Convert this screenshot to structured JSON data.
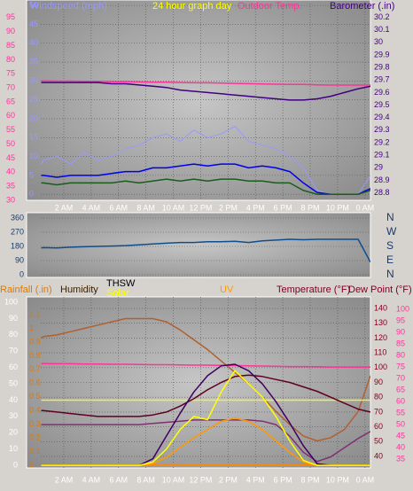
{
  "chart_data": [
    {
      "type": "line",
      "title": "24 hour graph day",
      "x": [
        0.35,
        0.5,
        1.5,
        2.5,
        3.5,
        4.5,
        5.5,
        6.5,
        7.5,
        8.5,
        9.5,
        10.5,
        11.5,
        12.5,
        13.5,
        14.5,
        15.5,
        16.5,
        17.5,
        18.5,
        19.5,
        20.5,
        21.5,
        22.5,
        23.5,
        24.4
      ],
      "xlim": [
        0.32,
        24.4
      ],
      "xticks": [
        {
          "value": 2,
          "label": "2 AM"
        },
        {
          "value": 4,
          "label": "4 AM"
        },
        {
          "value": 6,
          "label": "6 AM"
        },
        {
          "value": 8,
          "label": "8 AM"
        },
        {
          "value": 10,
          "label": "10 AM"
        },
        {
          "value": 12,
          "label": "12 PM"
        },
        {
          "value": 14,
          "label": "2 PM"
        },
        {
          "value": 16,
          "label": "4 PM"
        },
        {
          "value": 18,
          "label": "6 PM"
        },
        {
          "value": 20,
          "label": "8 PM"
        },
        {
          "value": 22,
          "label": "10 PM"
        },
        {
          "value": 24,
          "label": "0 AM"
        }
      ],
      "axes": [
        {
          "label": "Outdoor Temp.",
          "color": "#ff3399",
          "ylim": [
            30,
            100
          ],
          "yticks": [
            30,
            35,
            40,
            45,
            50,
            55,
            60,
            65,
            70,
            75,
            80,
            85,
            90,
            95
          ]
        },
        {
          "label": "Windspeed (mph)",
          "color": "#9999ff",
          "ylim": [
            -1.6,
            50.5
          ],
          "yticks": [
            0,
            5,
            10,
            15,
            20,
            25,
            30,
            35,
            40,
            45,
            50
          ],
          "grid": true
        },
        {
          "label": "Barometer (.in)",
          "color": "#400080",
          "ylim": [
            28.74,
            30.31
          ],
          "yticks": [
            28.8,
            28.9,
            29,
            29.1,
            29.2,
            29.3,
            29.4,
            29.5,
            29.6,
            29.7,
            29.8,
            29.9,
            30,
            30.1,
            30.2
          ]
        }
      ],
      "series": [
        {
          "axis": 1,
          "color": "#9999ff",
          "values": [
            8,
            9,
            10,
            8,
            11,
            9,
            10,
            12,
            13,
            15,
            16,
            14,
            17,
            15,
            16,
            18,
            14,
            13,
            12,
            10,
            7,
            1,
            0,
            0,
            0,
            5
          ]
        },
        {
          "axis": 1,
          "color": "#0000ee",
          "values": [
            5,
            5,
            4.5,
            5,
            5,
            5,
            5.5,
            6,
            6,
            7,
            7,
            7.5,
            8,
            7.5,
            8,
            8,
            7,
            7.5,
            7,
            6,
            3,
            0.5,
            0,
            0,
            0,
            1.5
          ]
        },
        {
          "axis": 1,
          "color": "#1a5c1a",
          "values": [
            3,
            3,
            2.5,
            3,
            3,
            3,
            3,
            3.5,
            3,
            3.5,
            4,
            3.5,
            4,
            3.5,
            4,
            4,
            3.5,
            3.5,
            3,
            3,
            1,
            0,
            0,
            0,
            0,
            1
          ]
        },
        {
          "axis": 0,
          "color": "#ff3399",
          "values": [
            72.5,
            72.5,
            72.4,
            72.4,
            72.3,
            72.3,
            72.2,
            72.2,
            72.1,
            72,
            72,
            71.9,
            71.8,
            71.8,
            71.7,
            71.6,
            71.5,
            71.4,
            71.3,
            71.2,
            71.2,
            71.1,
            71,
            71,
            71,
            71
          ]
        },
        {
          "axis": 2,
          "color": "#400080",
          "values": [
            29.68,
            29.68,
            29.68,
            29.68,
            29.68,
            29.68,
            29.67,
            29.67,
            29.66,
            29.65,
            29.64,
            29.62,
            29.61,
            29.6,
            29.59,
            29.58,
            29.57,
            29.56,
            29.55,
            29.54,
            29.54,
            29.55,
            29.57,
            29.6,
            29.63,
            29.65
          ]
        }
      ]
    },
    {
      "type": "line",
      "x": [
        0.35,
        0.5,
        1.5,
        2.5,
        3.5,
        4.5,
        5.5,
        6.5,
        7.5,
        8.5,
        9.5,
        10.5,
        11.5,
        12.5,
        13.5,
        14.5,
        15.5,
        16.5,
        17.5,
        18.5,
        19.5,
        20.5,
        21.5,
        22.5,
        23.5,
        24.4
      ],
      "xlim": [
        0.32,
        24.4
      ],
      "axes": [
        {
          "color": "#1a3a6a",
          "ylim": [
            0,
            360
          ],
          "yticks": [
            0,
            90,
            180,
            270,
            360
          ],
          "grid": true
        },
        {
          "color": "#1a3a6a",
          "ylim": [
            0,
            360
          ],
          "yticks": [
            {
              "value": 0,
              "label": "N"
            },
            {
              "value": 90,
              "label": "E"
            },
            {
              "value": 180,
              "label": "S"
            },
            {
              "value": 270,
              "label": "W"
            },
            {
              "value": 360,
              "label": "N"
            }
          ]
        }
      ],
      "series": [
        {
          "axis": 0,
          "color": "#104e8b",
          "values": [
            170,
            172,
            170,
            175,
            178,
            180,
            182,
            185,
            190,
            195,
            200,
            205,
            205,
            210,
            210,
            212,
            205,
            215,
            220,
            225,
            222,
            225,
            225,
            225,
            225,
            80
          ]
        }
      ]
    },
    {
      "type": "line",
      "annotations": [
        "THSW"
      ],
      "x": [
        0.35,
        0.5,
        1.5,
        2.5,
        3.5,
        4.5,
        5.5,
        6.5,
        7.5,
        8.5,
        9.5,
        10.5,
        11.5,
        12.5,
        13.5,
        14.5,
        15.5,
        16.5,
        17.5,
        18.5,
        19.5,
        20.5,
        21.5,
        22.5,
        23.5,
        24.4
      ],
      "xlim": [
        0.32,
        24.4
      ],
      "xticks": [
        {
          "value": 2,
          "label": "2 AM"
        },
        {
          "value": 4,
          "label": "4 AM"
        },
        {
          "value": 6,
          "label": "6 AM"
        },
        {
          "value": 8,
          "label": "8 AM"
        },
        {
          "value": 10,
          "label": "10 AM"
        },
        {
          "value": 12,
          "label": "12 PM"
        },
        {
          "value": 14,
          "label": "2 PM"
        },
        {
          "value": 16,
          "label": "4 PM"
        },
        {
          "value": 18,
          "label": "6 PM"
        },
        {
          "value": 20,
          "label": "8 PM"
        },
        {
          "value": 22,
          "label": "10 PM"
        },
        {
          "value": 24,
          "label": "0 AM"
        }
      ],
      "axes": [
        {
          "label": "Humidity",
          "color": "#ffffff",
          "label_color": "#3a2000",
          "ylim": [
            -1.6,
            103.3
          ],
          "yticks": [
            0,
            10,
            20,
            30,
            40,
            50,
            60,
            70,
            80,
            90,
            100
          ]
        },
        {
          "label": "Rainfall (.in)",
          "color": "#e07800",
          "ylim": [
            -0.02,
            1.23
          ],
          "yticks": [
            0,
            0.1,
            0.2,
            0.3,
            0.4,
            0.5,
            0.6,
            0.7,
            0.8,
            0.9,
            1,
            1.1
          ]
        },
        {
          "label": "Temperature (°F)",
          "color": "#800020",
          "ylim": [
            32.2,
            147.8
          ],
          "yticks": [
            40,
            50,
            60,
            70,
            80,
            90,
            100,
            110,
            120,
            130,
            140
          ],
          "grid": true
        },
        {
          "label": "Dew Point (°F)",
          "color": "#ff3399",
          "label_color": "#800020",
          "ylim": [
            31.2,
            105.4
          ],
          "yticks": [
            35,
            40,
            45,
            50,
            55,
            60,
            65,
            70,
            75,
            80,
            85,
            90,
            95,
            100
          ]
        }
      ],
      "series": [
        {
          "axis": 1,
          "color": "#ff8800",
          "values": [
            0,
            0,
            0,
            0,
            0,
            0,
            0,
            0,
            0,
            0,
            0,
            0,
            0,
            0,
            0,
            0,
            0,
            0,
            0,
            0,
            0,
            0,
            0,
            0,
            0,
            0
          ]
        },
        {
          "axis": 0,
          "color": "#b06030",
          "values": [
            78,
            79,
            80,
            82,
            84,
            86,
            88,
            90,
            90,
            90,
            88,
            83,
            77,
            71,
            64,
            57,
            50,
            42,
            33,
            25,
            18,
            15,
            17,
            22,
            33,
            55
          ]
        },
        {
          "axis": 0,
          "color": "#eeee55",
          "values": [
            40,
            40,
            40,
            40,
            40,
            40,
            40,
            40,
            40,
            40,
            40,
            40,
            40,
            40,
            40,
            40,
            40,
            40,
            40,
            40,
            40,
            40,
            40,
            40,
            40,
            40
          ]
        },
        {
          "axis": 3,
          "color": "#ff3399",
          "values": [
            76.5,
            76.5,
            76.4,
            76.4,
            76.3,
            76.3,
            76.2,
            76.2,
            76.1,
            76,
            76,
            75.9,
            75.8,
            75.8,
            75.7,
            75.6,
            75.5,
            75.4,
            75.3,
            75.2,
            75.2,
            75.1,
            75,
            75,
            75,
            75
          ]
        },
        {
          "axis": 3,
          "color": "#803070",
          "values": [
            50,
            50,
            50,
            50,
            50,
            50,
            50,
            50,
            50,
            50.5,
            51,
            51.5,
            52,
            52,
            52,
            52,
            52,
            51.5,
            50,
            45,
            38,
            34,
            36,
            40,
            44,
            47
          ]
        },
        {
          "axis": 2,
          "color": "#600020",
          "values": [
            71,
            71,
            70,
            69,
            68,
            67,
            67,
            67,
            67,
            68,
            70,
            74,
            79,
            85,
            90,
            94,
            95,
            94,
            92,
            90,
            87,
            84,
            80,
            76,
            72,
            70
          ]
        },
        {
          "axis": 0,
          "color": "#400060",
          "values": [
            0,
            0,
            0,
            0,
            0,
            0,
            0,
            0,
            0,
            4,
            18,
            32,
            45,
            55,
            61,
            62,
            58,
            50,
            39,
            26,
            12,
            1,
            0,
            0,
            0,
            0
          ]
        },
        {
          "name": "UV",
          "axis": 0,
          "color": "#ff9900",
          "values": [
            0,
            0,
            0,
            0,
            0,
            0,
            0,
            0,
            0,
            1,
            5,
            11,
            17,
            22,
            27,
            29,
            27,
            22,
            15,
            8,
            2,
            0,
            0,
            0,
            0,
            0
          ]
        },
        {
          "name": "Solar",
          "axis": 0,
          "color": "#ffff00",
          "values": [
            0,
            0,
            0,
            0,
            0,
            0,
            0,
            0,
            0,
            2,
            10,
            22,
            30,
            28,
            45,
            58,
            50,
            42,
            30,
            15,
            3,
            0,
            0,
            0,
            0,
            0
          ]
        }
      ]
    }
  ]
}
